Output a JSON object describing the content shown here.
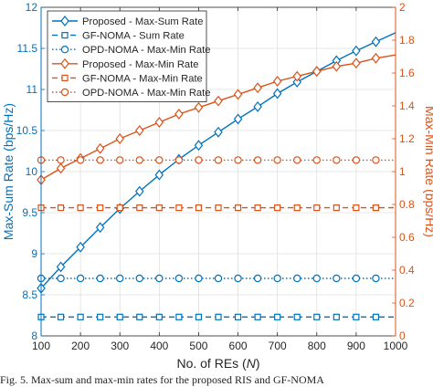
{
  "chart_data": {
    "type": "line",
    "x": [
      100,
      150,
      200,
      250,
      300,
      350,
      400,
      450,
      500,
      550,
      600,
      650,
      700,
      750,
      800,
      850,
      900,
      950
    ],
    "x_ticks": [
      100,
      200,
      300,
      400,
      500,
      600,
      700,
      800,
      900,
      1000
    ],
    "xlabel_prefix": "No. of REs (",
    "xlabel_var": "N",
    "xlabel_suffix": ")",
    "xlim": [
      100,
      1000
    ],
    "ylabel_left": "Max-Sum Rate (bps/Hz)",
    "ylim_left": [
      8,
      12
    ],
    "y_ticks_left": [
      "8",
      "8.5",
      "9",
      "9.5",
      "10",
      "10.5",
      "11",
      "11.5",
      "12"
    ],
    "ylabel_right": "Max-Min Rate (bps/Hz)",
    "ylim_right": [
      0,
      2
    ],
    "y_ticks_right": [
      "0",
      "0.2",
      "0.4",
      "0.6",
      "0.8",
      "1",
      "1.2",
      "1.4",
      "1.6",
      "1.8",
      "2"
    ],
    "grid": true,
    "legend_position": "top-left",
    "colors": {
      "left": "#0072BD",
      "right": "#D95319"
    },
    "series": [
      {
        "name": "Proposed - Max-Sum Rate",
        "axis": "left",
        "marker": "diamond",
        "dash": "solid",
        "values": [
          8.58,
          8.84,
          9.08,
          9.32,
          9.55,
          9.76,
          9.96,
          10.15,
          10.32,
          10.48,
          10.64,
          10.79,
          10.95,
          11.09,
          11.22,
          11.35,
          11.47,
          11.58
        ],
        "end": [
          1000,
          11.69
        ]
      },
      {
        "name": "GF-NOMA - Sum Rate",
        "axis": "left",
        "marker": "square",
        "dash": "dashed",
        "values": [
          8.23,
          8.23,
          8.23,
          8.23,
          8.23,
          8.23,
          8.23,
          8.23,
          8.23,
          8.23,
          8.23,
          8.23,
          8.23,
          8.23,
          8.23,
          8.23,
          8.23,
          8.23
        ],
        "end": [
          1000,
          8.23
        ]
      },
      {
        "name": "OPD-NOMA - Max-Min Rate",
        "axis": "left",
        "marker": "circle",
        "dash": "dotted",
        "values": [
          8.7,
          8.7,
          8.7,
          8.7,
          8.7,
          8.7,
          8.7,
          8.7,
          8.7,
          8.7,
          8.7,
          8.7,
          8.7,
          8.7,
          8.7,
          8.7,
          8.7,
          8.7
        ],
        "end": [
          1000,
          8.7
        ]
      },
      {
        "name": "Proposed - Max-Min Rate",
        "axis": "right",
        "marker": "diamond",
        "dash": "solid",
        "values": [
          0.95,
          1.02,
          1.08,
          1.14,
          1.2,
          1.25,
          1.3,
          1.35,
          1.39,
          1.43,
          1.47,
          1.51,
          1.55,
          1.58,
          1.61,
          1.64,
          1.66,
          1.69
        ],
        "end": [
          1000,
          1.71
        ]
      },
      {
        "name": "GF-NOMA - Max-Min Rate",
        "axis": "right",
        "marker": "square",
        "dash": "dashed",
        "values": [
          0.78,
          0.78,
          0.78,
          0.78,
          0.78,
          0.78,
          0.78,
          0.78,
          0.78,
          0.78,
          0.78,
          0.78,
          0.78,
          0.78,
          0.78,
          0.78,
          0.78,
          0.78
        ],
        "end": [
          1000,
          0.78
        ]
      },
      {
        "name": "OPD-NOMA - Max-Min Rate",
        "axis": "right",
        "marker": "circle",
        "dash": "dotted",
        "values": [
          1.07,
          1.07,
          1.07,
          1.07,
          1.07,
          1.07,
          1.07,
          1.07,
          1.07,
          1.07,
          1.07,
          1.07,
          1.07,
          1.07,
          1.07,
          1.07,
          1.07,
          1.07
        ],
        "end": [
          1000,
          1.07
        ]
      }
    ]
  },
  "caption": "Fig. 5. Max-sum and max-min rates for the proposed RIS and GF-NOMA"
}
